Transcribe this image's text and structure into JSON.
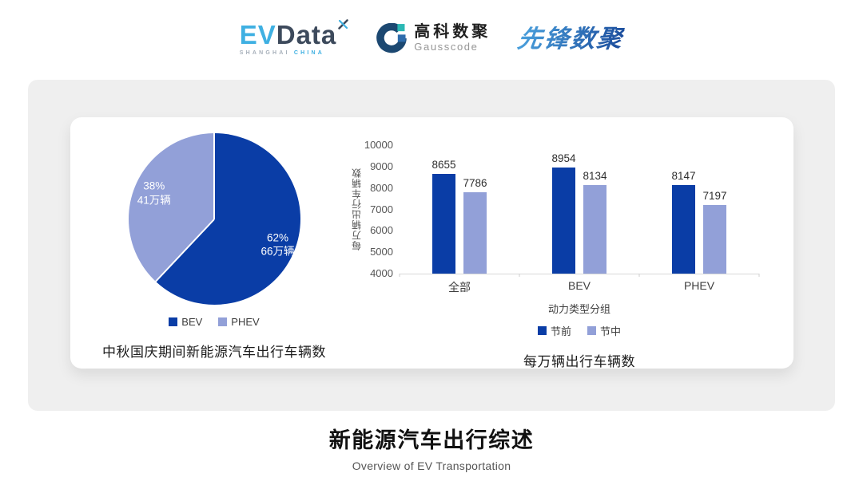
{
  "header": {
    "evdata": {
      "ev": "EV",
      "data": "Data",
      "sub_left": "SHANGHAI",
      "sub_right": "CHINA",
      "ev_color": "#3fb0e2",
      "data_color": "#3d4a5c"
    },
    "gausscode": {
      "cn": "高科数聚",
      "en": "Gausscode"
    },
    "xianfeng": {
      "label": "先锋数聚",
      "color": "#2d6cbd"
    }
  },
  "chart_data": [
    {
      "type": "pie",
      "title": "中秋国庆期间新能源汽车出行车辆数",
      "start_angle_deg": 0,
      "direction": "clockwise",
      "slices": [
        {
          "name": "BEV",
          "pct": 62,
          "label": "62%",
          "sublabel": "66万辆",
          "color": "#0a3da6"
        },
        {
          "name": "PHEV",
          "pct": 38,
          "label": "38%",
          "sublabel": "41万辆",
          "color": "#92a0d8"
        }
      ],
      "legend_position": "bottom"
    },
    {
      "type": "bar",
      "title": "每万辆出行车辆数",
      "categories": [
        "全部",
        "BEV",
        "PHEV"
      ],
      "series": [
        {
          "name": "节前",
          "color": "#0a3da6",
          "values": [
            8655,
            8954,
            8147
          ]
        },
        {
          "name": "节中",
          "color": "#92a0d8",
          "values": [
            7786,
            8134,
            7197
          ]
        }
      ],
      "ylabel": "每万辆出行车辆数",
      "xlabel": "动力类型分组",
      "ylim": [
        4000,
        10000
      ],
      "yticks": [
        10000,
        9000,
        8000,
        7000,
        6000,
        5000,
        4000
      ],
      "grid": false,
      "legend_position": "bottom"
    }
  ],
  "footer": {
    "title": "新能源汽车出行综述",
    "subtitle": "Overview of EV Transportation"
  }
}
